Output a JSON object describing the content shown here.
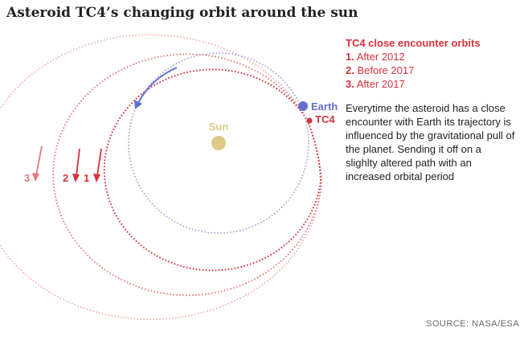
{
  "title": "Asteroid TC4’s changing orbit around the sun",
  "legend": {
    "title": "TC4 close encounter orbits",
    "items": [
      {
        "num": "1.",
        "label": "After 2012"
      },
      {
        "num": "2.",
        "label": "Before 2017"
      },
      {
        "num": "3.",
        "label": "After 2017"
      }
    ]
  },
  "description": "Everytime the asteroid has a close encounter with Earth its trajectory is influenced by the gravitational pull of the planet. Sending it off on a slighlty altered path with an increased orbital period",
  "labels": {
    "sun": "Sun",
    "earth": "Earth",
    "tc4": "TC4",
    "orbit_1": "1",
    "orbit_2": "2",
    "orbit_3": "3"
  },
  "source": "SOURCE: NASA/ESA",
  "colors": {
    "red": "#d6333b",
    "red_medium": "#e8787a",
    "red_light": "#f2aaa8",
    "earth_blue": "#6170c9",
    "earth_orbit": "#9aa3da",
    "sun": "#e0c986",
    "text": "#222222"
  }
}
